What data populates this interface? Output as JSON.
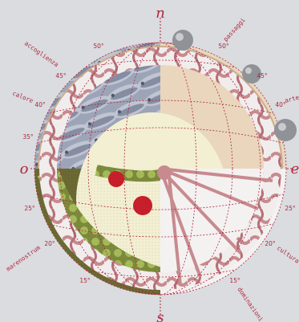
{
  "compass": {
    "north": "n",
    "south": "s",
    "west": "o",
    "east": "e"
  },
  "words": {
    "accoglienza": "accoglienza",
    "calore": "calore",
    "passaggi": "passaggi",
    "arte": "arte",
    "marenostrum": "marenostrum",
    "cultura": "cultura",
    "dominazioni": "dominazioni"
  },
  "degrees": {
    "upper_left": [
      "50°",
      "45°",
      "40°",
      "35°"
    ],
    "upper_right": [
      "50°",
      "45°",
      "40°"
    ],
    "lower_left": [
      "25°",
      "20°",
      "15°"
    ],
    "lower_right": [
      "25°",
      "20°",
      "15°"
    ]
  },
  "colors": {
    "background": "#dadcdf",
    "accent": "#b0263f",
    "fish_base": "#a9b2c4",
    "parchment": "#e9d6bd",
    "green_tart": "#8a9b45",
    "coral": "#c78a8e"
  },
  "quadrants": [
    "fish-photo",
    "parchment-circle",
    "green-tart-photo",
    "coral-wheel"
  ]
}
